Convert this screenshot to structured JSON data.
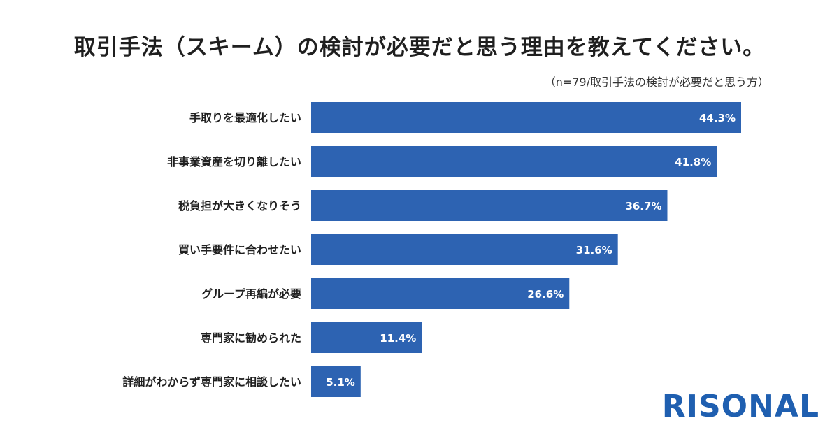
{
  "title": "取引手法（スキーム）の検討が必要だと思う理由を教えてください。",
  "subtitle": "（n=79/取引手法の検討が必要だと思う方）",
  "brand": "RISONAL",
  "colors": {
    "bar": "#2d63b2",
    "bar_label": "#ffffff",
    "category_text": "#1f1f1f",
    "brand": "#1f5fb0"
  },
  "chart_data": {
    "type": "bar",
    "orientation": "horizontal",
    "categories": [
      "手取りを最適化したい",
      "非事業資産を切り離したい",
      "税負担が大きくなりそう",
      "買い手要件に合わせたい",
      "グループ再編が必要",
      "専門家に勧められた",
      "詳細がわからず専門家に相談したい"
    ],
    "values": [
      44.3,
      41.8,
      36.7,
      31.6,
      26.6,
      11.4,
      5.1
    ],
    "value_labels": [
      "44.3%",
      "41.8%",
      "36.7%",
      "31.6%",
      "26.6%",
      "11.4%",
      "5.1%"
    ],
    "unit": "%",
    "xlim": [
      0,
      44.3
    ],
    "grid": false,
    "legend": "none"
  }
}
